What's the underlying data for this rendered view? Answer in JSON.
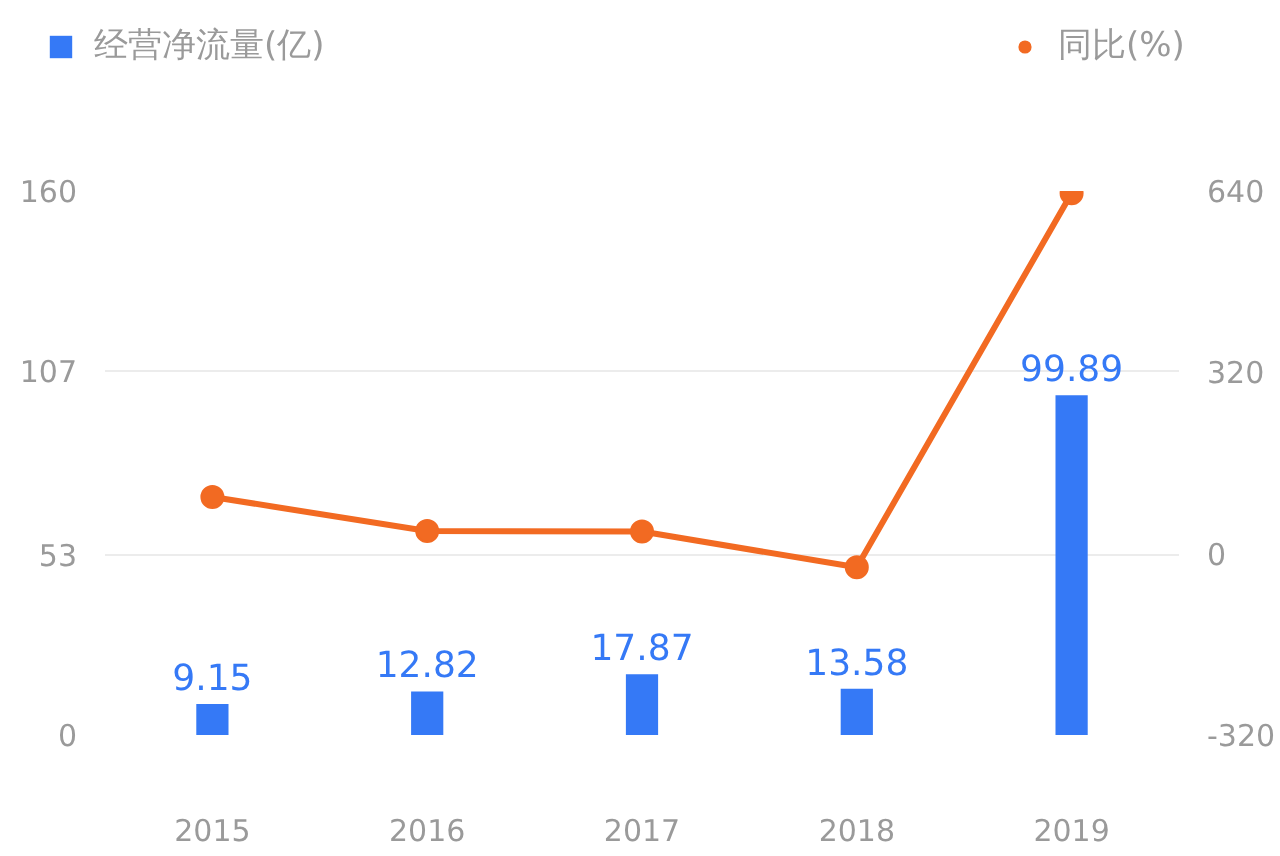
{
  "chart_data": {
    "type": "bar",
    "categories": [
      "2015",
      "2016",
      "2017",
      "2018",
      "2019"
    ],
    "ylim": [
      0,
      160
    ],
    "yticks": [
      0,
      53,
      107,
      160
    ],
    "y2lim": [
      -320,
      640
    ],
    "y2ticks": [
      -320,
      0,
      320,
      640
    ],
    "grid": "y",
    "legend": "top",
    "series": [
      {
        "name": "经营净流量(亿)",
        "color": "#3579f6",
        "values": [
          9.15,
          12.82,
          17.87,
          13.58,
          99.89
        ],
        "value_labels": [
          "9.15",
          "12.82",
          "17.87",
          "13.58",
          "99.89"
        ]
      },
      {
        "name": "同比(%)",
        "type": "line",
        "axis": "y2",
        "color": "#f26a22",
        "marker": "circle",
        "values": [
          100,
          40,
          39,
          -24,
          636
        ]
      }
    ]
  }
}
